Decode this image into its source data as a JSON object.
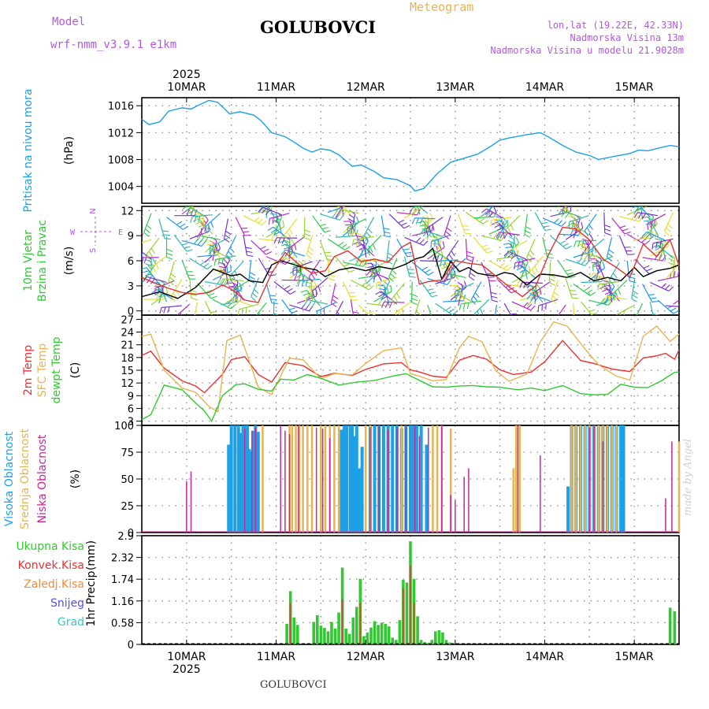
{
  "header": {
    "model_label": "Model",
    "model_name": "wrf-nmm_v3.9.1  e1km",
    "station": "GOLUBOVCI",
    "chart_kind": "Meteogram",
    "coords": "lon,lat (19.22E, 42.33N)",
    "altitude": "Nadmorska Visina 13m",
    "model_altitude": "Nadmorska Visina u modelu 21.9028m",
    "footer_station": "GOLUBOVCI",
    "credit": "made by Angel",
    "colors": {
      "model": "#b455e6",
      "title": "#000000",
      "meteogram": "#e6b450",
      "coords": "#b455e6"
    }
  },
  "axis_time": {
    "year": "2025",
    "day_labels": [
      "10MAR",
      "11MAR",
      "12MAR",
      "13MAR",
      "14MAR",
      "15MAR"
    ],
    "day_positions": [
      0.5,
      1.5,
      2.5,
      3.5,
      4.5,
      5.5
    ],
    "range": [
      0,
      6
    ]
  },
  "chart_data": [
    {
      "id": "pressure",
      "type": "line",
      "ylabel": "Pritisak na nivou mora",
      "yunit": "(hPa)",
      "ylim": [
        1001.5,
        1017.2
      ],
      "yticks": [
        1004,
        1008,
        1012,
        1016
      ],
      "series": [
        {
          "color": "#1ea0e6",
          "x": [
            0,
            0.08,
            0.2,
            0.3,
            0.45,
            0.55,
            0.62,
            0.75,
            0.85,
            0.98,
            1.1,
            1.25,
            1.33,
            1.45,
            1.6,
            1.7,
            1.8,
            1.9,
            2.0,
            2.1,
            2.2,
            2.35,
            2.45,
            2.6,
            2.7,
            2.85,
            3.0,
            3.05,
            3.15,
            3.3,
            3.45,
            3.6,
            3.75,
            3.9,
            4.0,
            4.1,
            4.3,
            4.45,
            4.55,
            4.7,
            4.85,
            5.0,
            5.1,
            5.25,
            5.45,
            5.55,
            5.65,
            5.8,
            5.9,
            6.0
          ],
          "y": [
            1014,
            1013.2,
            1013.6,
            1015.2,
            1015.7,
            1015.5,
            1016.0,
            1016.8,
            1016.5,
            1014.8,
            1015.1,
            1014.6,
            1013.8,
            1012.0,
            1011.4,
            1010.6,
            1009.7,
            1009.1,
            1009.6,
            1009.4,
            1008.7,
            1007.0,
            1007.2,
            1006.2,
            1005.3,
            1005.0,
            1004.1,
            1003.3,
            1003.7,
            1005.9,
            1007.6,
            1008.2,
            1008.8,
            1010.0,
            1010.9,
            1011.2,
            1011.7,
            1012.0,
            1011.3,
            1010.1,
            1009.1,
            1008.6,
            1008.0,
            1008.4,
            1008.9,
            1009.4,
            1009.3,
            1009.8,
            1010.1,
            1009.9
          ]
        }
      ]
    },
    {
      "id": "wind",
      "type": "line",
      "ylabel_1": "10m Vjetar",
      "ylabel_2": "Brzina i Pravac",
      "yunit": "(m/s)",
      "ylim": [
        -0.5,
        12.5
      ],
      "yticks": [
        0,
        3,
        6,
        9,
        12
      ],
      "compass": {
        "n": "N",
        "w": "W",
        "e": "E",
        "s": "S"
      },
      "series": [
        {
          "color": "#000000",
          "x": [
            0,
            0.2,
            0.4,
            0.6,
            0.8,
            1.0,
            1.1,
            1.2,
            1.35,
            1.45,
            1.55,
            1.65,
            1.8,
            1.95,
            2.05,
            2.2,
            2.35,
            2.5,
            2.65,
            2.8,
            2.95,
            3.05,
            3.15,
            3.25,
            3.35,
            3.45,
            3.55,
            3.65,
            3.75,
            3.85,
            3.95,
            4.05,
            4.15,
            4.3,
            4.45,
            4.6,
            4.75,
            4.9,
            5.05,
            5.2,
            5.35,
            5.5,
            5.6,
            5.75,
            5.9,
            6.0
          ],
          "y": [
            1.7,
            2.3,
            1.5,
            2.8,
            5.0,
            4.2,
            4.4,
            3.6,
            3.4,
            5.5,
            6.0,
            5.7,
            5.2,
            4.9,
            4.1,
            4.9,
            5.2,
            4.8,
            5.3,
            5.0,
            5.6,
            6.2,
            6.5,
            7.5,
            3.8,
            5.9,
            4.7,
            5.2,
            4.5,
            4.3,
            4.2,
            4.6,
            4.4,
            3.1,
            4.4,
            4.3,
            4.0,
            4.6,
            3.6,
            4.0,
            3.6,
            5.2,
            4.1,
            4.8,
            5.1,
            5.5
          ]
        },
        {
          "color": "#e63232",
          "x": [
            0,
            0.15,
            0.3,
            0.45,
            0.6,
            0.75,
            0.9,
            1.0,
            1.15,
            1.3,
            1.45,
            1.6,
            1.75,
            1.9,
            2.05,
            2.15,
            2.3,
            2.45,
            2.6,
            2.75,
            2.9,
            3.0,
            3.1,
            3.2,
            3.35,
            3.5,
            3.65,
            3.8,
            3.95,
            4.1,
            4.25,
            4.4,
            4.55,
            4.7,
            4.85,
            5.0,
            5.15,
            5.3,
            5.45,
            5.6,
            5.75,
            5.9,
            6.0
          ],
          "y": [
            4.0,
            3.3,
            2.7,
            2.2,
            2.0,
            2.2,
            3.1,
            2.6,
            1.3,
            1.0,
            4.5,
            7.0,
            5.6,
            4.5,
            4.8,
            6.5,
            7.2,
            5.9,
            6.2,
            5.8,
            7.6,
            8.2,
            3.2,
            3.5,
            3.7,
            6.0,
            5.7,
            5.5,
            4.2,
            2.9,
            1.7,
            3.0,
            6.9,
            10.0,
            9.8,
            8.5,
            6.2,
            5.2,
            4.0,
            8.0,
            6.5,
            8.5,
            5.4
          ]
        }
      ]
    },
    {
      "id": "temperature",
      "type": "line",
      "ylabel_1": "2m Temp",
      "ylabel_2": "SFC Temp",
      "ylabel_3": "dewpt Temp",
      "yunit": "(C)",
      "ylim": [
        2,
        28
      ],
      "yticks": [
        3,
        6,
        9,
        12,
        15,
        18,
        21,
        24,
        27
      ],
      "series": [
        {
          "color": "#e63232",
          "x": [
            0,
            0.1,
            0.25,
            0.45,
            0.6,
            0.7,
            0.9,
            1.0,
            1.15,
            1.3,
            1.45,
            1.6,
            1.8,
            2.0,
            2.15,
            2.35,
            2.5,
            2.7,
            2.9,
            3.0,
            3.1,
            3.25,
            3.4,
            3.55,
            3.7,
            3.85,
            4.0,
            4.15,
            4.35,
            4.5,
            4.7,
            4.9,
            5.05,
            5.25,
            5.45,
            5.6,
            5.75,
            5.85,
            5.95,
            6.0
          ],
          "y": [
            18.5,
            19.5,
            15.5,
            12.5,
            11.3,
            9.7,
            14.0,
            17.5,
            18.2,
            14.0,
            12.2,
            16.8,
            16.1,
            13.5,
            14.3,
            13.8,
            15.2,
            16.5,
            16.8,
            15.1,
            14.6,
            13.6,
            13.3,
            17.4,
            18.5,
            17.6,
            15.1,
            14.0,
            14.6,
            17.0,
            22.0,
            17.3,
            16.6,
            15.3,
            14.7,
            17.9,
            18.4,
            19.0,
            17.6,
            19.8
          ]
        },
        {
          "color": "#e6b450",
          "x": [
            0,
            0.1,
            0.25,
            0.45,
            0.6,
            0.75,
            0.85,
            0.95,
            1.1,
            1.2,
            1.3,
            1.45,
            1.55,
            1.65,
            1.8,
            2.0,
            2.15,
            2.35,
            2.5,
            2.7,
            2.9,
            3.0,
            3.1,
            3.25,
            3.4,
            3.55,
            3.65,
            3.8,
            3.95,
            4.1,
            4.3,
            4.45,
            4.6,
            4.75,
            4.95,
            5.1,
            5.3,
            5.45,
            5.6,
            5.75,
            5.9,
            6.0
          ],
          "y": [
            23.0,
            23.5,
            15.0,
            10.8,
            9.8,
            6.5,
            5.2,
            22.0,
            23.3,
            17.2,
            11.0,
            9.3,
            13.6,
            17.8,
            17.5,
            13.0,
            14.2,
            13.9,
            16.6,
            19.6,
            20.3,
            14.2,
            13.6,
            12.5,
            12.8,
            20.4,
            23.0,
            21.7,
            15.0,
            12.4,
            14.1,
            21.7,
            26.4,
            25.4,
            20.0,
            16.3,
            13.6,
            12.7,
            23.0,
            25.4,
            21.8,
            23.5
          ]
        },
        {
          "color": "#32c832",
          "x": [
            0,
            0.1,
            0.25,
            0.45,
            0.6,
            0.7,
            0.78,
            0.9,
            1.05,
            1.15,
            1.3,
            1.45,
            1.55,
            1.7,
            1.85,
            2.0,
            2.2,
            2.4,
            2.6,
            2.8,
            2.95,
            3.1,
            3.25,
            3.4,
            3.55,
            3.7,
            3.85,
            4.0,
            4.2,
            4.35,
            4.5,
            4.7,
            4.9,
            5.05,
            5.2,
            5.35,
            5.5,
            5.65,
            5.8,
            5.95,
            6.0
          ],
          "y": [
            3.4,
            4.5,
            11.5,
            10.4,
            7.3,
            5.4,
            3.0,
            9.0,
            11.6,
            11.8,
            10.5,
            10.1,
            12.9,
            12.7,
            14.0,
            13.1,
            11.5,
            12.2,
            12.6,
            13.6,
            14.2,
            12.6,
            11.1,
            11.0,
            11.3,
            11.4,
            11.1,
            11.0,
            10.4,
            10.8,
            10.2,
            11.4,
            9.5,
            9.2,
            9.3,
            11.7,
            11.0,
            10.9,
            12.5,
            14.5,
            14.6
          ]
        }
      ]
    },
    {
      "id": "cloud",
      "type": "bar",
      "ylabel_1": "Visoka Oblacnost",
      "ylabel_2": "Srednja Oblacnost",
      "ylabel_3": "Niska Oblacnost",
      "yunit": "(%)",
      "ylim": [
        0,
        100
      ],
      "yticks": [
        0,
        25,
        50,
        75,
        100
      ],
      "series": [
        {
          "name": "Visoka Oblacnost",
          "color": "#1ea0e6",
          "x": [
            0.97,
            1.0,
            1.04,
            1.08,
            1.1,
            1.13,
            1.15,
            1.18,
            1.2,
            1.22,
            1.25,
            1.27,
            1.3,
            2.23,
            2.26,
            2.29,
            2.33,
            2.35,
            2.38,
            2.4,
            2.43,
            2.46,
            2.55,
            2.6,
            2.65,
            2.7,
            2.75,
            2.8,
            2.85,
            2.9,
            2.95,
            3.0,
            3.03,
            3.07,
            3.12,
            3.18,
            4.76,
            4.8,
            4.85,
            4.9,
            4.95,
            5.0,
            5.05,
            5.1,
            5.15,
            5.2,
            5.25,
            5.3,
            5.35,
            5.38
          ],
          "values": [
            82,
            100,
            100,
            100,
            93,
            100,
            100,
            100,
            78,
            76,
            95,
            100,
            94,
            96,
            100,
            100,
            100,
            100,
            90,
            100,
            60,
            80,
            100,
            100,
            100,
            100,
            100,
            100,
            100,
            97,
            100,
            100,
            100,
            100,
            100,
            82,
            43,
            100,
            100,
            100,
            100,
            100,
            100,
            100,
            100,
            100,
            100,
            100,
            100,
            100
          ]
        },
        {
          "name": "Srednja Oblacnost",
          "color": "#e6b450",
          "x": [
            1.35,
            1.65,
            1.68,
            1.72,
            1.76,
            1.8,
            1.85,
            1.9,
            2.0,
            2.05,
            2.1,
            2.15,
            2.2,
            2.5,
            2.55,
            2.9,
            3.25,
            3.3,
            3.35,
            3.45,
            4.15,
            4.18,
            4.22,
            4.8,
            4.85,
            4.9,
            4.95,
            5.0,
            5.05,
            5.1,
            5.15,
            5.2,
            5.25,
            5.3,
            6.0
          ],
          "values": [
            100,
            100,
            100,
            100,
            100,
            100,
            100,
            100,
            100,
            100,
            100,
            100,
            100,
            100,
            100,
            100,
            100,
            100,
            100,
            97,
            60,
            100,
            100,
            100,
            100,
            100,
            100,
            100,
            100,
            100,
            100,
            100,
            100,
            100,
            85
          ]
        },
        {
          "name": "Niska Oblacnost",
          "color": "#c82896",
          "x": [
            0.5,
            0.55,
            1.15,
            1.23,
            1.27,
            1.55,
            1.6,
            1.65,
            1.75,
            1.95,
            2.02,
            2.1,
            2.55,
            2.65,
            2.75,
            2.85,
            2.95,
            3.05,
            3.1,
            3.2,
            3.35,
            3.45,
            3.5,
            3.6,
            3.65,
            4.2,
            4.45,
            5.0,
            5.05,
            5.15,
            5.85,
            5.92
          ],
          "values": [
            48,
            57,
            97,
            95,
            98,
            100,
            95,
            92,
            100,
            98,
            97,
            88,
            98,
            100,
            96,
            98,
            100,
            99,
            90,
            98,
            100,
            35,
            30,
            52,
            60,
            100,
            72,
            98,
            100,
            85,
            32,
            85
          ]
        }
      ]
    },
    {
      "id": "precip",
      "type": "bar",
      "ylabel": "1hr Precip",
      "yunit": "(mm)",
      "ylim": [
        0,
        2.9
      ],
      "yticks": [
        0,
        0.58,
        1.16,
        1.74,
        2.32,
        2.9
      ],
      "legend": [
        {
          "label": "Ukupna Kisa",
          "color": "#32c832"
        },
        {
          "label": "Konvek.Kisa",
          "color": "#e63232"
        },
        {
          "label": "Zaledj.Kisa",
          "color": "#f08c3c"
        },
        {
          "label": "Snijeg",
          "color": "#5050e6"
        },
        {
          "label": "Grad",
          "color": "#32c8c8"
        }
      ],
      "series": [
        {
          "name": "Ukupna Kisa",
          "color": "#32c832",
          "x": [
            1.62,
            1.66,
            1.7,
            1.74,
            1.92,
            1.96,
            2.0,
            2.04,
            2.08,
            2.12,
            2.16,
            2.2,
            2.24,
            2.28,
            2.32,
            2.36,
            2.4,
            2.44,
            2.48,
            2.52,
            2.56,
            2.6,
            2.64,
            2.68,
            2.72,
            2.76,
            2.8,
            2.84,
            2.88,
            2.92,
            2.96,
            3.0,
            3.04,
            3.08,
            3.12,
            3.16,
            3.2,
            3.24,
            3.28,
            3.32,
            3.36,
            3.4,
            3.44,
            5.9,
            5.95
          ],
          "values": [
            0.55,
            1.42,
            0.72,
            0.52,
            0.6,
            0.78,
            0.5,
            0.44,
            0.35,
            0.6,
            0.42,
            0.85,
            2.05,
            0.42,
            0.28,
            0.72,
            1.0,
            1.75,
            0.22,
            0.32,
            0.45,
            0.62,
            0.52,
            0.58,
            0.55,
            0.48,
            0.18,
            0.12,
            0.65,
            1.72,
            1.65,
            2.75,
            1.75,
            0.75,
            0.12,
            0.06,
            0.04,
            0.12,
            0.35,
            0.38,
            0.32,
            0.12,
            0.05,
            0.98,
            0.88
          ]
        },
        {
          "name": "Konvek.Kisa",
          "color": "#e63232",
          "x": [
            1.66,
            2.24,
            2.44,
            2.92,
            3.0,
            3.04
          ],
          "values": [
            1.1,
            1.2,
            1.1,
            1.5,
            2.1,
            1.1
          ]
        }
      ]
    }
  ]
}
